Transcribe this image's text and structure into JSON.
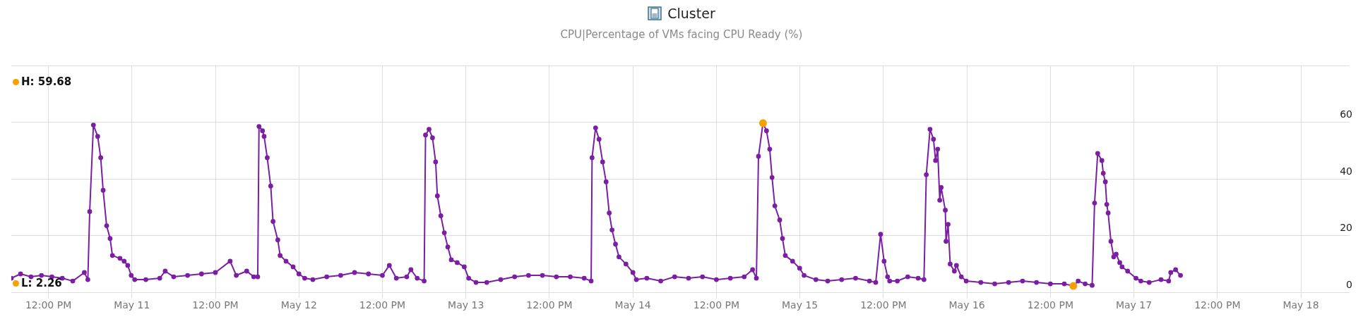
{
  "chart_data": {
    "type": "line",
    "title": "Cluster",
    "subtitle": "CPU|Percentage of VMs facing CPU Ready (%)",
    "x": [
      "--05-10T06:40",
      "--05-10T08:00",
      "--05-10T09:30",
      "--05-10T11:00",
      "--05-10T12:30",
      "--05-10T14:00",
      "--05-10T15:30",
      "--05-10T17:10",
      "--05-10T17:40",
      "--05-10T17:56",
      "--05-10T18:28",
      "--05-10T19:05",
      "--05-10T19:31",
      "--05-10T19:52",
      "--05-10T20:22",
      "--05-10T20:52",
      "--05-10T21:12",
      "--05-10T22:17",
      "--05-10T22:53",
      "--05-10T23:24",
      "--05-10T23:54",
      "--05-11T00:24",
      "--05-11T02:00",
      "--05-11T04:00",
      "--05-11T04:47",
      "--05-11T06:00",
      "--05-11T08:00",
      "--05-11T10:00",
      "--05-11T12:00",
      "--05-11T14:07",
      "--05-11T15:00",
      "--05-11T16:30",
      "--05-11T17:30",
      "--05-11T18:05",
      "--05-11T18:16",
      "--05-11T18:46",
      "--05-11T19:00",
      "--05-11T19:27",
      "--05-11T19:57",
      "--05-11T20:17",
      "--05-11T20:58",
      "--05-11T21:18",
      "--05-11T22:09",
      "--05-11T23:10",
      "--05-12T00:00",
      "--05-12T00:50",
      "--05-12T02:00",
      "--05-12T04:00",
      "--05-12T06:00",
      "--05-12T08:00",
      "--05-12T10:00",
      "--05-12T12:00",
      "--05-12T13:00",
      "--05-12T14:00",
      "--05-12T15:30",
      "--05-12T16:06",
      "--05-12T17:00",
      "--05-12T18:00",
      "--05-12T18:12",
      "--05-12T18:42",
      "--05-12T19:12",
      "--05-12T19:39",
      "--05-12T19:54",
      "--05-12T20:24",
      "--05-12T20:54",
      "--05-12T21:24",
      "--05-12T21:54",
      "--05-12T22:45",
      "--05-12T23:46",
      "--05-13T00:24",
      "--05-13T01:27",
      "--05-13T03:00",
      "--05-13T05:00",
      "--05-13T07:00",
      "--05-13T09:00",
      "--05-13T11:00",
      "--05-13T13:00",
      "--05-13T15:00",
      "--05-13T17:00",
      "--05-13T18:00",
      "--05-13T18:08",
      "--05-13T18:38",
      "--05-13T19:08",
      "--05-13T19:39",
      "--05-13T20:09",
      "--05-13T20:36",
      "--05-13T21:00",
      "--05-13T21:30",
      "--05-13T22:00",
      "--05-13T23:00",
      "--05-14T00:00",
      "--05-14T00:30",
      "--05-14T02:00",
      "--05-14T04:00",
      "--05-14T06:00",
      "--05-14T08:00",
      "--05-14T10:00",
      "--05-14T12:00",
      "--05-14T14:00",
      "--05-14T16:00",
      "--05-14T17:12",
      "--05-14T17:45",
      "--05-14T18:03",
      "--05-14T18:42",
      "--05-14T19:12",
      "--05-14T19:40",
      "--05-14T20:00",
      "--05-14T20:24",
      "--05-14T21:06",
      "--05-14T21:30",
      "--05-14T21:54",
      "--05-14T22:57",
      "--05-14T23:58",
      "--05-15T00:36",
      "--05-15T02:18",
      "--05-15T04:00",
      "--05-15T06:00",
      "--05-15T08:00",
      "--05-15T10:00",
      "--05-15T10:54",
      "--05-15T11:36",
      "--05-15T12:06",
      "--05-15T12:36",
      "--05-15T12:54",
      "--05-15T14:00",
      "--05-15T15:30",
      "--05-15T17:00",
      "--05-15T17:50",
      "--05-15T18:10",
      "--05-15T18:42",
      "--05-15T19:12",
      "--05-15T19:30",
      "--05-15T19:48",
      "--05-15T20:06",
      "--05-15T20:18",
      "--05-15T20:54",
      "--05-15T21:00",
      "--05-15T21:18",
      "--05-15T21:36",
      "--05-15T22:12",
      "--05-15T22:30",
      "--05-15T23:12",
      "--05-15T23:54",
      "--05-16T02:00",
      "--05-16T04:00",
      "--05-16T06:00",
      "--05-16T08:00",
      "--05-16T10:00",
      "--05-16T12:00",
      "--05-16T14:00",
      "--05-16T15:18",
      "--05-16T16:00",
      "--05-16T17:00",
      "--05-16T18:00",
      "--05-16T18:21",
      "--05-16T18:48",
      "--05-16T19:24",
      "--05-16T19:36",
      "--05-16T19:54",
      "--05-16T20:06",
      "--05-16T20:18",
      "--05-16T20:42",
      "--05-16T21:06",
      "--05-16T21:27",
      "--05-16T21:58",
      "--05-16T22:18",
      "--05-16T23:06",
      "--05-17T00:18",
      "--05-17T01:00",
      "--05-17T02:12",
      "--05-17T03:54",
      "--05-17T05:00",
      "--05-17T05:18",
      "--05-17T06:00",
      "--05-17T06:42"
    ],
    "series": [
      {
        "color": "#7b1fa2",
        "values": [
          5,
          6.5,
          5.5,
          6,
          5.5,
          5,
          4,
          7,
          4.5,
          28.5,
          59,
          55,
          47.5,
          36,
          23.5,
          19,
          13,
          12,
          11,
          9.5,
          6,
          4.5,
          4.5,
          5,
          7.5,
          5.5,
          6,
          6.5,
          7,
          11,
          6,
          7.5,
          5.5,
          5.5,
          58.5,
          57,
          55,
          47.5,
          37.5,
          25,
          18.5,
          13,
          11,
          9,
          6.5,
          5,
          4.5,
          5.5,
          6,
          7,
          6.5,
          6,
          9.5,
          5,
          5.5,
          8,
          5,
          4,
          55.5,
          57.5,
          54.5,
          46,
          34,
          27,
          21,
          16,
          11.5,
          10.5,
          9,
          5,
          3.5,
          3.5,
          4.5,
          5.5,
          6,
          6,
          5.5,
          5.5,
          5,
          4,
          47.5,
          58,
          54,
          46,
          39,
          28,
          22,
          17,
          12.5,
          10,
          7,
          4.5,
          5,
          4,
          5.5,
          5,
          5.5,
          4.5,
          5,
          5.5,
          8,
          5,
          48,
          59.68,
          57,
          50.5,
          40.5,
          30.5,
          25.5,
          19,
          13,
          11,
          8.5,
          6,
          4.5,
          4,
          4.5,
          5,
          4,
          3.5,
          20.5,
          11,
          5.5,
          4,
          4,
          5.5,
          5,
          4.5,
          41.5,
          57.5,
          54,
          46.5,
          50.5,
          32.5,
          37,
          29,
          18,
          24,
          10,
          7.5,
          9.5,
          5.5,
          4,
          3.5,
          3,
          3.5,
          4,
          3.5,
          3,
          3,
          2.26,
          4,
          3,
          2.5,
          31.5,
          49,
          46.5,
          42,
          39,
          31,
          28,
          18,
          12.5,
          13.5,
          10.5,
          9,
          7.5,
          5,
          4,
          3.5,
          4.5,
          4,
          7,
          8,
          6
        ]
      },
      {
        "type": "scatter",
        "color": "#f5a100",
        "x": [
          "--05-14T18:42",
          "--05-16T15:18"
        ],
        "values": [
          59.68,
          2.26
        ]
      }
    ],
    "marker": "circle",
    "grid": true,
    "legend": false,
    "xlim": [
      "--05-10T06:40",
      "--05-18T07:00"
    ],
    "xticks": [
      {
        "value": "--05-10T12:00",
        "label": "12:00 PM"
      },
      {
        "value": "--05-11",
        "label": "May 11"
      },
      {
        "value": "--05-11T12:00",
        "label": "12:00 PM"
      },
      {
        "value": "--05-12",
        "label": "May 12"
      },
      {
        "value": "--05-12T12:00",
        "label": "12:00 PM"
      },
      {
        "value": "--05-13",
        "label": "May 13"
      },
      {
        "value": "--05-13T12:00",
        "label": "12:00 PM"
      },
      {
        "value": "--05-14",
        "label": "May 14"
      },
      {
        "value": "--05-14T12:00",
        "label": "12:00 PM"
      },
      {
        "value": "--05-15",
        "label": "May 15"
      },
      {
        "value": "--05-15T12:00",
        "label": "12:00 PM"
      },
      {
        "value": "--05-16",
        "label": "May 16"
      },
      {
        "value": "--05-16T12:00",
        "label": "12:00 PM"
      },
      {
        "value": "--05-17",
        "label": "May 17"
      },
      {
        "value": "--05-17T12:00",
        "label": "12:00 PM"
      },
      {
        "value": "--05-18",
        "label": "May 18"
      }
    ],
    "ylim": [
      0,
      80
    ],
    "yticks": [
      0,
      20,
      40,
      60,
      {
        "value": 80,
        "label": null
      }
    ],
    "annotations": [
      "H: 59.68",
      "L: 2.26"
    ]
  }
}
